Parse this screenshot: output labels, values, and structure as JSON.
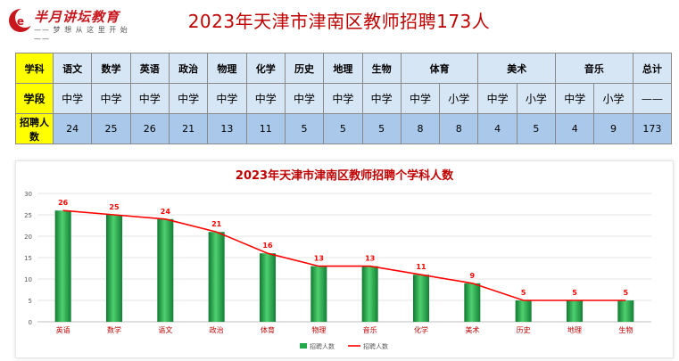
{
  "brand": {
    "name": "半月讲坛教育",
    "slogan": "—— 梦 想 从 这 里 开 始 ——",
    "accent": "#c8161d"
  },
  "page_title": "2023年天津市津南区教师招聘173人",
  "table": {
    "row_labels": {
      "subject": "学科",
      "level": "学段",
      "count": "招聘人数"
    },
    "subjects": [
      {
        "name": "语文",
        "levels": [
          {
            "level": "中学",
            "count": "24"
          }
        ]
      },
      {
        "name": "数学",
        "levels": [
          {
            "level": "中学",
            "count": "25"
          }
        ]
      },
      {
        "name": "英语",
        "levels": [
          {
            "level": "中学",
            "count": "26"
          }
        ]
      },
      {
        "name": "政治",
        "levels": [
          {
            "level": "中学",
            "count": "21"
          }
        ]
      },
      {
        "name": "物理",
        "levels": [
          {
            "level": "中学",
            "count": "13"
          }
        ]
      },
      {
        "name": "化学",
        "levels": [
          {
            "level": "中学",
            "count": "11"
          }
        ]
      },
      {
        "name": "历史",
        "levels": [
          {
            "level": "中学",
            "count": "5"
          }
        ]
      },
      {
        "name": "地理",
        "levels": [
          {
            "level": "中学",
            "count": "5"
          }
        ]
      },
      {
        "name": "生物",
        "levels": [
          {
            "level": "中学",
            "count": "5"
          }
        ]
      },
      {
        "name": "体育",
        "levels": [
          {
            "level": "中学",
            "count": "8"
          },
          {
            "level": "小学",
            "count": "8"
          }
        ]
      },
      {
        "name": "美术",
        "levels": [
          {
            "level": "中学",
            "count": "4"
          },
          {
            "level": "小学",
            "count": "5"
          }
        ]
      },
      {
        "name": "音乐",
        "levels": [
          {
            "level": "中学",
            "count": "4"
          },
          {
            "level": "小学",
            "count": "9"
          }
        ]
      },
      {
        "name": "总计",
        "levels": [
          {
            "level": "——",
            "count": "173"
          }
        ]
      }
    ]
  },
  "chart_data": {
    "type": "bar",
    "title": "2023年天津市津南区教师招聘个学科人数",
    "categories": [
      "英语",
      "数学",
      "语文",
      "政治",
      "体育",
      "物理",
      "音乐",
      "化学",
      "美术",
      "历史",
      "地理",
      "生物"
    ],
    "series": [
      {
        "name": "招聘人数",
        "kind": "bar",
        "color": "#22a94a",
        "values": [
          26,
          25,
          24,
          21,
          16,
          13,
          13,
          11,
          9,
          5,
          5,
          5
        ]
      },
      {
        "name": "招聘人数",
        "kind": "line",
        "color": "#ff0000",
        "values": [
          26,
          25,
          24,
          21,
          16,
          13,
          13,
          11,
          9,
          5,
          5,
          5
        ]
      }
    ],
    "ylim": [
      0,
      30
    ],
    "yticks": [
      0,
      5,
      10,
      15,
      20,
      25,
      30
    ],
    "grid": true,
    "legend": "bottom",
    "data_label_color": "#ff0000",
    "category_label_color": "#c00000"
  }
}
